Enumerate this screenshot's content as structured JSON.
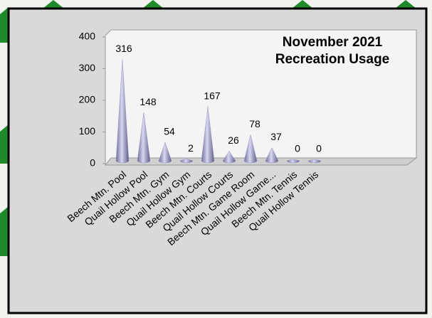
{
  "chart_data": {
    "type": "cone",
    "title": "November 2021 Recreation Usage",
    "categories": [
      "Beech Mtn. Pool",
      "Quail Hollow Pool",
      "Beech Mtn. Gym",
      "Quail Hollow Gym",
      "Beech Mtn. Courts",
      "Quail Hollow Courts",
      "Beech Mtn. Game Room",
      "Quail Hollow Game...",
      "Beech Mtn. Tennis",
      "Quail Hollow Tennis"
    ],
    "values": [
      316,
      148,
      54,
      2,
      167,
      26,
      78,
      37,
      0,
      0
    ],
    "color": "#9a98c4",
    "ylim": [
      0,
      400
    ],
    "yticks": [
      0,
      100,
      200,
      300,
      400
    ]
  }
}
